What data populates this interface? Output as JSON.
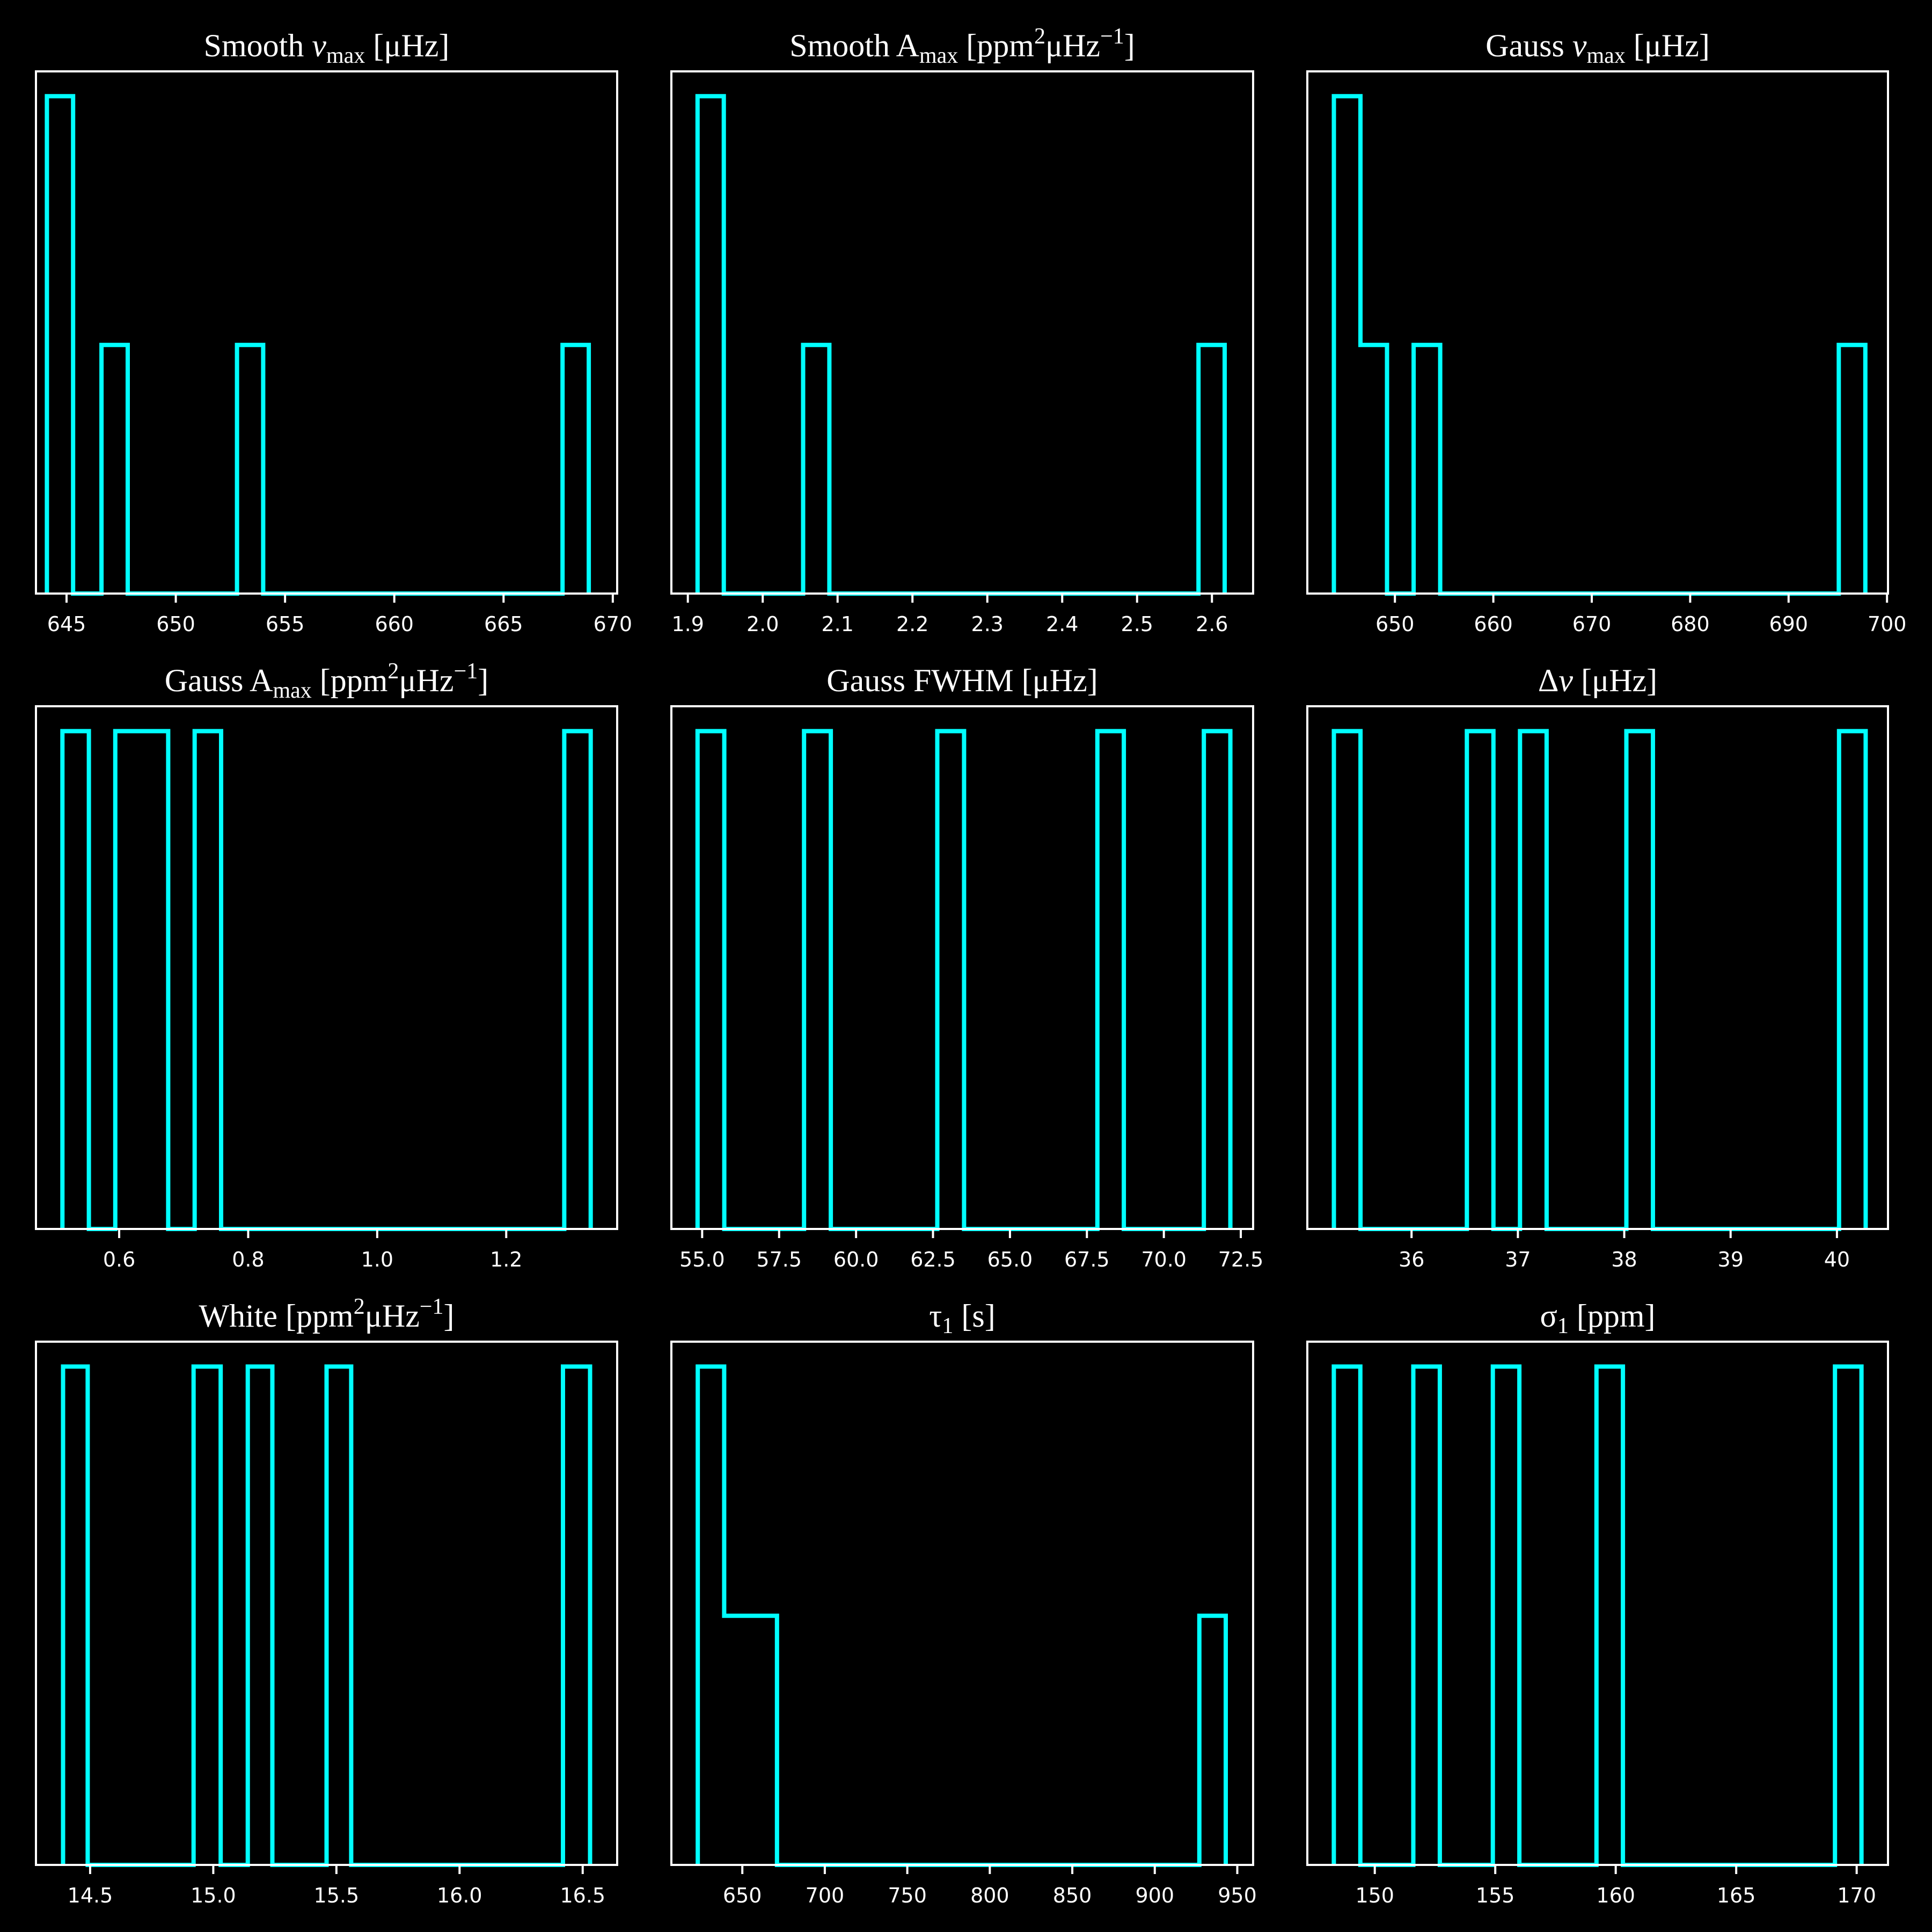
{
  "colors": {
    "background": "#000000",
    "foreground": "#ffffff",
    "hist": "#00ffff"
  },
  "chart_data": [
    {
      "type": "histogram",
      "title": "Smooth ν_max [μHz]",
      "title_parts": [
        {
          "t": "Smooth "
        },
        {
          "t": "ν",
          "i": true
        },
        {
          "t": "max",
          "sub": true
        },
        {
          "t": " [μHz]"
        }
      ],
      "xlim": [
        643.6,
        670.2
      ],
      "xticks": [
        645,
        650,
        655,
        660,
        665,
        670
      ],
      "xtick_labels": [
        "645",
        "650",
        "655",
        "660",
        "665",
        "670"
      ],
      "bin_edges": [
        644.1,
        645.3,
        646.6,
        647.8,
        649.1,
        650.3,
        651.5,
        652.8,
        654.0,
        655.3,
        656.5,
        657.7,
        659.0,
        660.2,
        661.5,
        662.7,
        663.9,
        665.2,
        666.4,
        667.7,
        668.9
      ],
      "counts": [
        2,
        0,
        1,
        0,
        0,
        0,
        0,
        1,
        0,
        0,
        0,
        0,
        0,
        0,
        0,
        0,
        0,
        0,
        0,
        1
      ],
      "ymax": 2.1
    },
    {
      "type": "histogram",
      "title": "Smooth A_max [ppm²μHz⁻¹]",
      "title_parts": [
        {
          "t": "Smooth A"
        },
        {
          "t": "max",
          "sub": true
        },
        {
          "t": " [ppm"
        },
        {
          "t": "2",
          "sup": true
        },
        {
          "t": "μHz"
        },
        {
          "t": "−1",
          "sup": true
        },
        {
          "t": "]"
        }
      ],
      "xlim": [
        1.878,
        2.655
      ],
      "xticks": [
        1.9,
        2.0,
        2.1,
        2.2,
        2.3,
        2.4,
        2.5,
        2.6
      ],
      "xtick_labels": [
        "1.9",
        "2.0",
        "2.1",
        "2.2",
        "2.3",
        "2.4",
        "2.5",
        "2.6"
      ],
      "bin_edges": [
        1.913,
        1.948,
        1.983,
        2.019,
        2.054,
        2.089,
        2.124,
        2.159,
        2.194,
        2.23,
        2.265,
        2.3,
        2.335,
        2.37,
        2.406,
        2.441,
        2.476,
        2.511,
        2.546,
        2.582,
        2.617
      ],
      "counts": [
        2,
        0,
        0,
        0,
        1,
        0,
        0,
        0,
        0,
        0,
        0,
        0,
        0,
        0,
        0,
        0,
        0,
        0,
        0,
        1
      ],
      "ymax": 2.1
    },
    {
      "type": "histogram",
      "title": "Gauss ν_max [μHz]",
      "title_parts": [
        {
          "t": "Gauss "
        },
        {
          "t": "ν",
          "i": true
        },
        {
          "t": "max",
          "sub": true
        },
        {
          "t": " [μHz]"
        }
      ],
      "xlim": [
        641.1,
        700.1
      ],
      "xticks": [
        650,
        660,
        670,
        680,
        690,
        700
      ],
      "xtick_labels": [
        "650",
        "660",
        "670",
        "680",
        "690",
        "700"
      ],
      "bin_edges": [
        643.8,
        646.5,
        649.2,
        651.9,
        654.6,
        657.3,
        660.0,
        662.7,
        665.4,
        668.1,
        670.8,
        673.5,
        676.2,
        678.9,
        681.6,
        684.3,
        687.0,
        689.7,
        692.4,
        695.1,
        697.8
      ],
      "counts": [
        2,
        1,
        0,
        1,
        0,
        0,
        0,
        0,
        0,
        0,
        0,
        0,
        0,
        0,
        0,
        0,
        0,
        0,
        0,
        1
      ],
      "ymax": 2.1
    },
    {
      "type": "histogram",
      "title": "Gauss A_max [ppm²μHz⁻¹]",
      "title_parts": [
        {
          "t": "Gauss A"
        },
        {
          "t": "max",
          "sub": true
        },
        {
          "t": " [ppm"
        },
        {
          "t": "2",
          "sup": true
        },
        {
          "t": "μHz"
        },
        {
          "t": "−1",
          "sup": true
        },
        {
          "t": "]"
        }
      ],
      "xlim": [
        0.471,
        1.372
      ],
      "xticks": [
        0.6,
        0.8,
        1.0,
        1.2
      ],
      "xtick_labels": [
        "0.6",
        "0.8",
        "1.0",
        "1.2"
      ],
      "bin_edges": [
        0.512,
        0.553,
        0.594,
        0.635,
        0.676,
        0.717,
        0.758,
        0.799,
        0.84,
        0.881,
        0.922,
        0.962,
        1.003,
        1.044,
        1.085,
        1.126,
        1.167,
        1.208,
        1.249,
        1.29,
        1.331
      ],
      "counts": [
        1,
        0,
        1,
        1,
        0,
        1,
        0,
        0,
        0,
        0,
        0,
        0,
        0,
        0,
        0,
        0,
        0,
        0,
        0,
        1
      ],
      "ymax": 1.05
    },
    {
      "type": "histogram",
      "title": "Gauss FWHM [μHz]",
      "title_parts": [
        {
          "t": "Gauss FWHM [μHz]"
        }
      ],
      "xlim": [
        54.0,
        72.9
      ],
      "xticks": [
        55.0,
        57.5,
        60.0,
        62.5,
        65.0,
        67.5,
        70.0,
        72.5
      ],
      "xtick_labels": [
        "55.0",
        "57.5",
        "60.0",
        "62.5",
        "65.0",
        "67.5",
        "70.0",
        "72.5"
      ],
      "bin_edges": [
        54.85,
        55.72,
        56.58,
        57.45,
        58.31,
        59.18,
        60.04,
        60.91,
        61.78,
        62.64,
        63.51,
        64.37,
        65.24,
        66.1,
        66.97,
        67.84,
        68.7,
        69.57,
        70.43,
        71.3,
        72.16
      ],
      "counts": [
        1,
        0,
        0,
        0,
        1,
        0,
        0,
        0,
        0,
        1,
        0,
        0,
        0,
        0,
        0,
        1,
        0,
        0,
        0,
        1
      ],
      "ymax": 1.05
    },
    {
      "type": "histogram",
      "title": "Δν [μHz]",
      "title_parts": [
        {
          "t": "Δ"
        },
        {
          "t": "ν",
          "i": true
        },
        {
          "t": " [μHz]"
        }
      ],
      "xlim": [
        35.02,
        40.48
      ],
      "xticks": [
        36,
        37,
        38,
        39,
        40
      ],
      "xtick_labels": [
        "36",
        "37",
        "38",
        "39",
        "40"
      ],
      "bin_edges": [
        35.27,
        35.52,
        35.77,
        36.02,
        36.27,
        36.52,
        36.77,
        37.02,
        37.27,
        37.52,
        37.77,
        38.02,
        38.27,
        38.52,
        38.77,
        39.02,
        39.27,
        39.52,
        39.77,
        40.02,
        40.27
      ],
      "counts": [
        1,
        0,
        0,
        0,
        0,
        1,
        0,
        1,
        0,
        0,
        0,
        1,
        0,
        0,
        0,
        0,
        0,
        0,
        0,
        1
      ],
      "ymax": 1.05
    },
    {
      "type": "histogram",
      "title": "White [ppm²μHz⁻¹]",
      "title_parts": [
        {
          "t": "White [ppm"
        },
        {
          "t": "2",
          "sup": true
        },
        {
          "t": "μHz"
        },
        {
          "t": "−1",
          "sup": true
        },
        {
          "t": "]"
        }
      ],
      "xlim": [
        14.28,
        16.64
      ],
      "xticks": [
        14.5,
        15.0,
        15.5,
        16.0,
        16.5
      ],
      "xtick_labels": [
        "14.5",
        "15.0",
        "15.5",
        "16.0",
        "16.5"
      ],
      "bin_edges": [
        14.39,
        14.49,
        14.6,
        14.71,
        14.81,
        14.92,
        15.03,
        15.14,
        15.24,
        15.35,
        15.46,
        15.56,
        15.67,
        15.78,
        15.89,
        15.99,
        16.1,
        16.21,
        16.31,
        16.42,
        16.53
      ],
      "counts": [
        1,
        0,
        0,
        0,
        0,
        1,
        0,
        1,
        0,
        0,
        1,
        0,
        0,
        0,
        0,
        0,
        0,
        0,
        0,
        1
      ],
      "ymax": 1.05
    },
    {
      "type": "histogram",
      "title": "τ₁ [s]",
      "title_parts": [
        {
          "t": "τ"
        },
        {
          "t": "1",
          "sub": true
        },
        {
          "t": " [s]"
        }
      ],
      "xlim": [
        607.0,
        959.6
      ],
      "xticks": [
        650,
        700,
        750,
        800,
        850,
        900,
        950
      ],
      "xtick_labels": [
        "650",
        "700",
        "750",
        "800",
        "850",
        "900",
        "950"
      ],
      "bin_edges": [
        623.0,
        639.0,
        655.0,
        671.0,
        687.0,
        703.0,
        719.0,
        735.0,
        751.0,
        767.0,
        783.0,
        799.0,
        815.0,
        831.0,
        847.0,
        863.0,
        879.0,
        895.0,
        911.0,
        927.0,
        943.0
      ],
      "counts": [
        2,
        1,
        1,
        0,
        0,
        0,
        0,
        0,
        0,
        0,
        0,
        0,
        0,
        0,
        0,
        0,
        0,
        0,
        0,
        1
      ],
      "ymax": 2.1
    },
    {
      "type": "histogram",
      "title": "σ₁ [ppm]",
      "title_parts": [
        {
          "t": "σ"
        },
        {
          "t": "1",
          "sub": true
        },
        {
          "t": " [ppm]"
        }
      ],
      "xlim": [
        147.2,
        171.3
      ],
      "xticks": [
        150,
        155,
        160,
        165,
        170
      ],
      "xtick_labels": [
        "150",
        "155",
        "160",
        "165",
        "170"
      ],
      "bin_edges": [
        148.3,
        149.4,
        150.5,
        151.6,
        152.7,
        153.8,
        154.9,
        156.0,
        157.1,
        158.2,
        159.2,
        160.3,
        161.4,
        162.5,
        163.6,
        164.7,
        165.8,
        166.9,
        168.0,
        169.1,
        170.2
      ],
      "counts": [
        1,
        0,
        0,
        1,
        0,
        0,
        1,
        0,
        0,
        0,
        1,
        0,
        0,
        0,
        0,
        0,
        0,
        0,
        0,
        1
      ],
      "ymax": 1.05
    }
  ]
}
